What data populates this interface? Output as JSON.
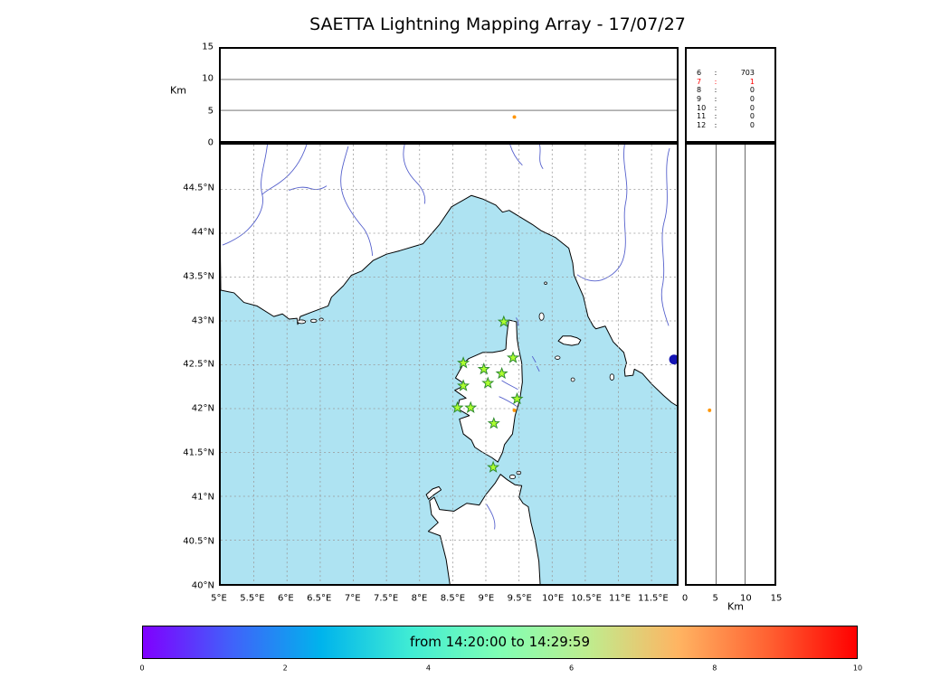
{
  "title": "SAETTA Lightning Mapping Array - 17/07/27",
  "labels": {
    "km_left": "Km",
    "km_bottom": "Km"
  },
  "stats": {
    "normal_color": "#000000",
    "highlight_color": "#ff0000",
    "rows": [
      {
        "label": "6",
        "value": "703",
        "highlight": false
      },
      {
        "label": "7",
        "value": "1",
        "highlight": true
      },
      {
        "label": "8",
        "value": "0",
        "highlight": false
      },
      {
        "label": "9",
        "value": "0",
        "highlight": false
      },
      {
        "label": "10",
        "value": "0",
        "highlight": false
      },
      {
        "label": "11",
        "value": "0",
        "highlight": false
      },
      {
        "label": "12",
        "value": "0",
        "highlight": false
      }
    ]
  },
  "colorbar": {
    "label": "from 14:20:00 to 14:29:59",
    "ticks": [
      "0",
      "2",
      "4",
      "6",
      "8",
      "10"
    ],
    "tick_values": [
      0,
      2,
      4,
      6,
      8,
      10
    ],
    "range": [
      0,
      10
    ],
    "colors": [
      "#8000ff",
      "#4062fa",
      "#00b4ec",
      "#40ecd4",
      "#80ffb4",
      "#bfec8e",
      "#ffb462",
      "#ff6232",
      "#ff0000"
    ]
  },
  "chart_data": {
    "type": "scatter",
    "title": "SAETTA Lightning Mapping Array - 17/07/27",
    "map_panel": {
      "xlim": [
        5.0,
        11.88
      ],
      "ylim": [
        40.0,
        45.01
      ],
      "xticks": [
        5,
        5.5,
        6,
        6.5,
        7,
        7.5,
        8,
        8.5,
        9,
        9.5,
        10,
        10.5,
        11,
        11.5
      ],
      "xtick_labels": [
        "5°E",
        "5.5°E",
        "6°E",
        "6.5°E",
        "7°E",
        "7.5°E",
        "8°E",
        "8.5°E",
        "9°E",
        "9.5°E",
        "10°E",
        "10.5°E",
        "11°E",
        "11.5°E"
      ],
      "yticks": [
        40,
        40.5,
        41,
        41.5,
        42,
        42.5,
        43,
        43.5,
        44,
        44.5
      ],
      "ytick_labels": [
        "40°N",
        "40.5°N",
        "41°N",
        "41.5°N",
        "42°N",
        "42.5°N",
        "43°N",
        "43.5°N",
        "44°N",
        "44.5°N"
      ],
      "grid": true,
      "stations_lonlat": [
        [
          9.27,
          42.99
        ],
        [
          8.66,
          42.52
        ],
        [
          8.97,
          42.45
        ],
        [
          9.24,
          42.4
        ],
        [
          9.41,
          42.58
        ],
        [
          8.66,
          42.26
        ],
        [
          9.03,
          42.29
        ],
        [
          9.47,
          42.11
        ],
        [
          8.57,
          42.01
        ],
        [
          8.77,
          42.01
        ],
        [
          9.12,
          41.83
        ],
        [
          9.11,
          41.33
        ]
      ],
      "station_marker": {
        "shape": "star",
        "fill": "#adff2f",
        "stroke": "#2e8b2e"
      },
      "lake_marker": {
        "lon": 11.84,
        "lat": 42.56,
        "color": "#1414b4"
      }
    },
    "altitude_panels": {
      "alt_lim_km": [
        0,
        15
      ],
      "alt_ticks": [
        0,
        5,
        10,
        15
      ],
      "alt_label": "Km"
    },
    "sources": [
      {
        "lon": 9.43,
        "lat": 41.98,
        "alt_km": 3.9,
        "color": "#ff9500"
      }
    ],
    "station_count_histogram": {
      "6": 703,
      "7": 1,
      "8": 0,
      "9": 0,
      "10": 0,
      "11": 0,
      "12": 0
    },
    "time_window": {
      "start": "14:20:00",
      "end": "14:29:59"
    }
  }
}
